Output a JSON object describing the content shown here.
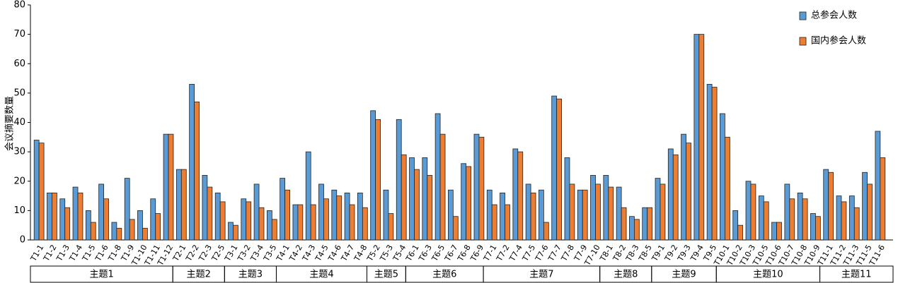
{
  "chart_data": {
    "type": "bar",
    "y_label": "会议摘要数量",
    "ylim": [
      0,
      80
    ],
    "yticks": [
      0,
      10,
      20,
      30,
      40,
      50,
      60,
      70,
      80
    ],
    "legend": "top-right",
    "groups": [
      {
        "name": "主题1",
        "categories": [
          "T1-1",
          "T1-2",
          "T1-3",
          "T1-4",
          "T1-5",
          "T1-6",
          "T1-8",
          "T1-9",
          "T1-10",
          "T1-11",
          "T1-12"
        ]
      },
      {
        "name": "主题2",
        "categories": [
          "T2-1",
          "T2-2",
          "T2-3",
          "T2-5"
        ]
      },
      {
        "name": "主题3",
        "categories": [
          "T3-1",
          "T3-2",
          "T3-4",
          "T3-5"
        ]
      },
      {
        "name": "主题4",
        "categories": [
          "T4-1",
          "T4-2",
          "T4-3",
          "T4-5",
          "T4-6",
          "T4-7",
          "T4-8"
        ]
      },
      {
        "name": "主题5",
        "categories": [
          "T5-2",
          "T5-3",
          "T5-4"
        ]
      },
      {
        "name": "主题6",
        "categories": [
          "T6-1",
          "T6-3",
          "T6-5",
          "T6-7",
          "T6-8",
          "T6-9"
        ]
      },
      {
        "name": "主题7",
        "categories": [
          "T7-1",
          "T7-2",
          "T7-4",
          "T7-5",
          "T7-6",
          "T7-7",
          "T7-8",
          "T7-9",
          "T7-10"
        ]
      },
      {
        "name": "主题8",
        "categories": [
          "T8-1",
          "T8-2",
          "T8-3",
          "T8-5"
        ]
      },
      {
        "name": "主题9",
        "categories": [
          "T9-1",
          "T9-2",
          "T9-3",
          "T9-4",
          "T9-5"
        ]
      },
      {
        "name": "主题10",
        "categories": [
          "T10-1",
          "T10-2",
          "T10-3",
          "T10-5",
          "T10-6",
          "T10-7",
          "T10-8",
          "T10-9"
        ]
      },
      {
        "name": "主题11",
        "categories": [
          "T11-1",
          "T11-2",
          "T11-3",
          "T11-5",
          "T11-6"
        ]
      }
    ],
    "series": [
      {
        "name": "总参会人数",
        "color": "#5b9bd5",
        "values": [
          34,
          16,
          14,
          18,
          10,
          19,
          6,
          21,
          10,
          14,
          36,
          24,
          53,
          22,
          16,
          6,
          14,
          19,
          10,
          21,
          12,
          30,
          19,
          17,
          16,
          16,
          44,
          17,
          41,
          28,
          28,
          43,
          17,
          26,
          36,
          17,
          16,
          31,
          19,
          17,
          49,
          28,
          17,
          22,
          22,
          18,
          8,
          11,
          21,
          31,
          36,
          70,
          53,
          43,
          10,
          20,
          15,
          6,
          19,
          16,
          9,
          24,
          15,
          15,
          23,
          37
        ]
      },
      {
        "name": "国内参会人数",
        "color": "#ed7d31",
        "values": [
          33,
          16,
          11,
          16,
          6,
          14,
          4,
          7,
          4,
          9,
          36,
          24,
          47,
          18,
          13,
          5,
          13,
          11,
          7,
          17,
          12,
          12,
          14,
          15,
          12,
          11,
          41,
          9,
          29,
          24,
          22,
          36,
          8,
          25,
          35,
          12,
          12,
          30,
          16,
          6,
          48,
          19,
          17,
          19,
          18,
          11,
          7,
          11,
          19,
          29,
          33,
          70,
          52,
          35,
          5,
          19,
          13,
          6,
          14,
          14,
          8,
          23,
          13,
          11,
          19,
          28
        ]
      }
    ]
  }
}
